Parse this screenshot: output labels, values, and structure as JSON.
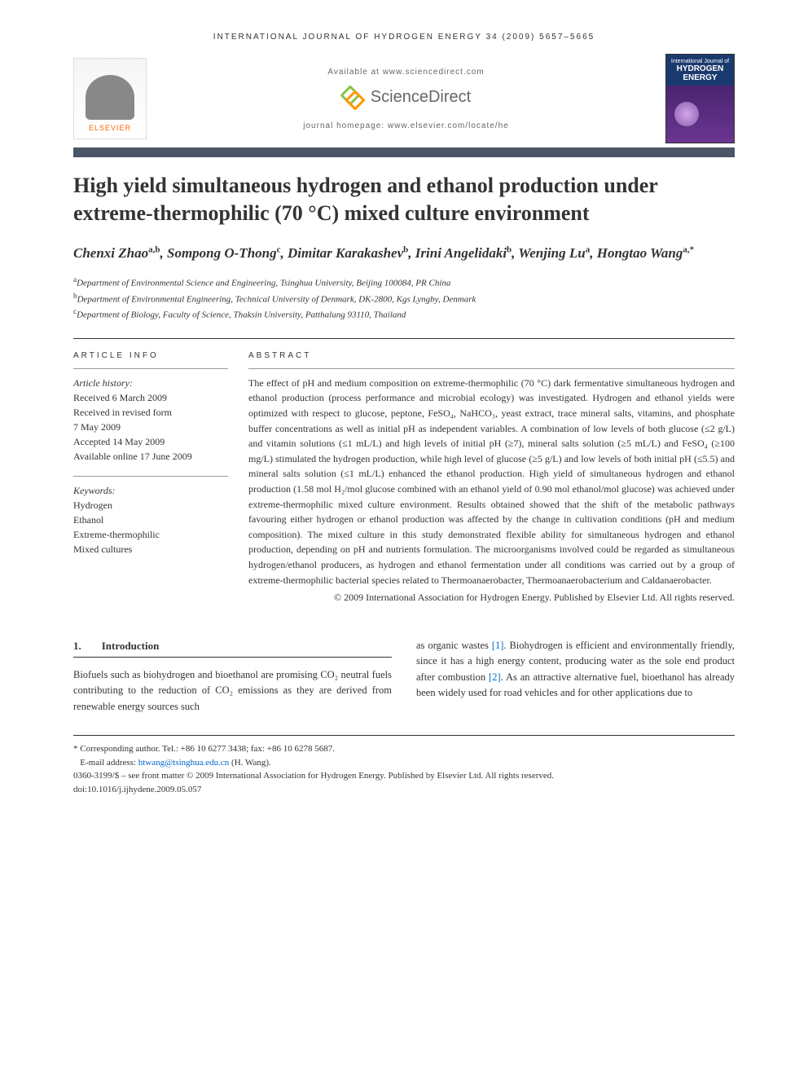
{
  "header": {
    "journal_line": "INTERNATIONAL JOURNAL OF HYDROGEN ENERGY 34 (2009) 5657–5665",
    "available_at": "Available at www.sciencedirect.com",
    "sciencedirect": "ScienceDirect",
    "homepage": "journal homepage: www.elsevier.com/locate/he",
    "elsevier": "ELSEVIER",
    "cover_line1": "International Journal of",
    "cover_line2": "HYDROGEN",
    "cover_line3": "ENERGY"
  },
  "article": {
    "title": "High yield simultaneous hydrogen and ethanol production under extreme-thermophilic (70 °C) mixed culture environment",
    "authors_html": "Chenxi Zhao<sup>a,b</sup>, Sompong O-Thong<sup>c</sup>, Dimitar Karakashev<sup>b</sup>, Irini Angelidaki<sup>b</sup>, Wenjing Lu<sup>a</sup>, Hongtao Wang<sup>a,*</sup>",
    "affiliations": [
      {
        "sup": "a",
        "text": "Department of Environmental Science and Engineering, Tsinghua University, Beijing 100084, PR China"
      },
      {
        "sup": "b",
        "text": "Department of Environmental Engineering, Technical University of Denmark, DK-2800, Kgs Lyngby, Denmark"
      },
      {
        "sup": "c",
        "text": "Department of Biology, Faculty of Science, Thaksin University, Patthalung 93110, Thailand"
      }
    ]
  },
  "info": {
    "heading": "ARTICLE INFO",
    "history_label": "Article history:",
    "received": "Received 6 March 2009",
    "revised": "Received in revised form",
    "revised_date": "7 May 2009",
    "accepted": "Accepted 14 May 2009",
    "online": "Available online 17 June 2009",
    "keywords_label": "Keywords:",
    "keywords": [
      "Hydrogen",
      "Ethanol",
      "Extreme-thermophilic",
      "Mixed cultures"
    ]
  },
  "abstract": {
    "heading": "ABSTRACT",
    "text": "The effect of pH and medium composition on extreme-thermophilic (70 °C) dark fermentative simultaneous hydrogen and ethanol production (process performance and microbial ecology) was investigated. Hydrogen and ethanol yields were optimized with respect to glucose, peptone, FeSO₄, NaHCO₃, yeast extract, trace mineral salts, vitamins, and phosphate buffer concentrations as well as initial pH as independent variables. A combination of low levels of both glucose (≤2 g/L) and vitamin solutions (≤1 mL/L) and high levels of initial pH (≥7), mineral salts solution (≥5 mL/L) and FeSO₄ (≥100 mg/L) stimulated the hydrogen production, while high level of glucose (≥5 g/L) and low levels of both initial pH (≤5.5) and mineral salts solution (≤1 mL/L) enhanced the ethanol production. High yield of simultaneous hydrogen and ethanol production (1.58 mol H₂/mol glucose combined with an ethanol yield of 0.90 mol ethanol/mol glucose) was achieved under extreme-thermophilic mixed culture environment. Results obtained showed that the shift of the metabolic pathways favouring either hydrogen or ethanol production was affected by the change in cultivation conditions (pH and medium composition). The mixed culture in this study demonstrated flexible ability for simultaneous hydrogen and ethanol production, depending on pH and nutrients formulation. The microorganisms involved could be regarded as simultaneous hydrogen/ethanol producers, as hydrogen and ethanol fermentation under all conditions was carried out by a group of extreme-thermophilic bacterial species related to Thermoanaerobacter, Thermoanaerobacterium and Caldanaerobacter.",
    "copyright": "© 2009 International Association for Hydrogen Energy. Published by Elsevier Ltd. All rights reserved."
  },
  "body": {
    "section_num": "1.",
    "section_title": "Introduction",
    "col1": "Biofuels such as biohydrogen and bioethanol are promising CO₂ neutral fuels contributing to the reduction of CO₂ emissions as they are derived from renewable energy sources such",
    "col2_pre": "as organic wastes ",
    "ref1": "[1]",
    "col2_mid": ". Biohydrogen is efficient and environmentally friendly, since it has a high energy content, producing water as the sole end product after combustion ",
    "ref2": "[2]",
    "col2_post": ". As an attractive alternative fuel, bioethanol has already been widely used for road vehicles and for other applications due to"
  },
  "footer": {
    "corresponding": "* Corresponding author. Tel.: +86 10 6277 3438; fax: +86 10 6278 5687.",
    "email_label": "E-mail address: ",
    "email": "htwang@tsinghua.edu.cn",
    "email_name": " (H. Wang).",
    "issn": "0360-3199/$ – see front matter © 2009 International Association for Hydrogen Energy. Published by Elsevier Ltd. All rights reserved.",
    "doi": "doi:10.1016/j.ijhydene.2009.05.057"
  },
  "colors": {
    "title_bar": "#4a5568",
    "link": "#0066cc",
    "elsevier_orange": "#ff6600"
  }
}
